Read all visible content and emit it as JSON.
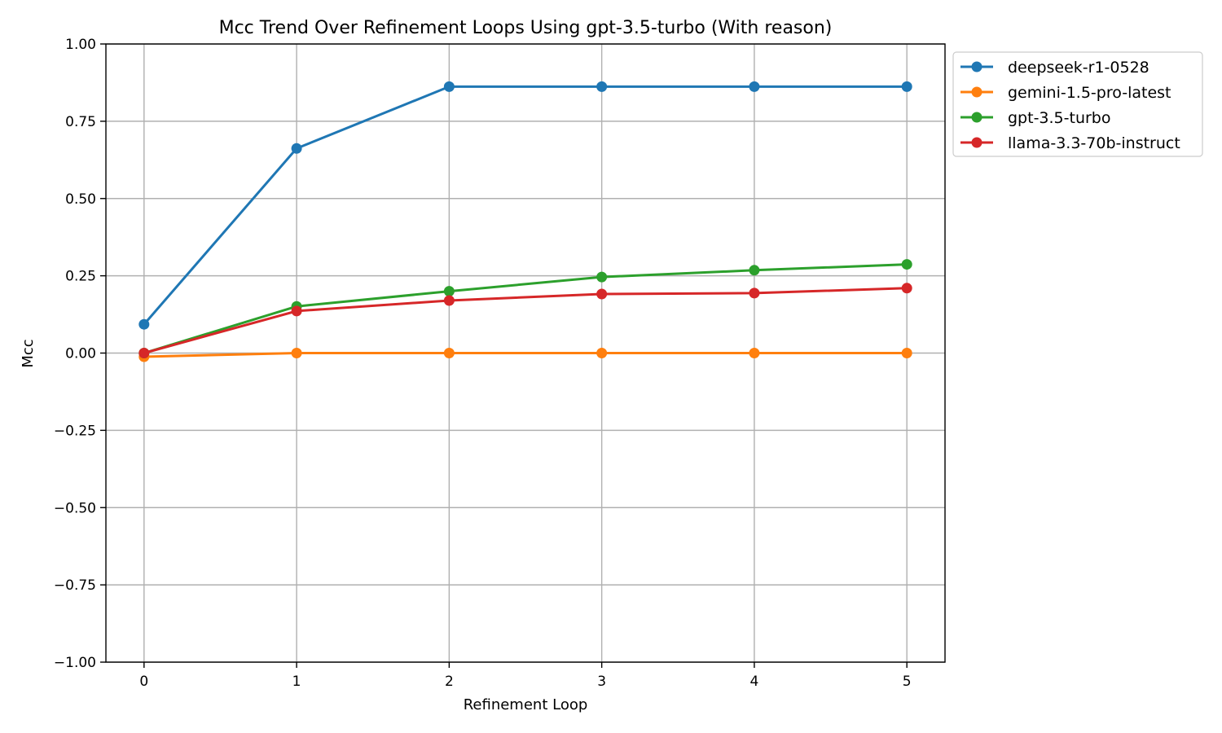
{
  "chart_data": {
    "type": "line",
    "title": "Mcc Trend Over Refinement Loops Using gpt-3.5-turbo (With reason)",
    "xlabel": "Refinement Loop",
    "ylabel": "Mcc",
    "x": [
      0,
      1,
      2,
      3,
      4,
      5
    ],
    "xticks": [
      "0",
      "1",
      "2",
      "3",
      "4",
      "5"
    ],
    "xlim": [
      -0.25,
      5.25
    ],
    "ylim": [
      -1.0,
      1.0
    ],
    "yticks": [
      1.0,
      0.75,
      0.5,
      0.25,
      0.0,
      -0.25,
      -0.5,
      -0.75,
      -1.0
    ],
    "ytick_labels": [
      "1.00",
      "0.75",
      "0.50",
      "0.25",
      "0.00",
      "−0.25",
      "−0.50",
      "−0.75",
      "−1.00"
    ],
    "grid": true,
    "legend_position": "outside-top-right",
    "series": [
      {
        "name": "deepseek-r1-0528",
        "color": "#1f77b4",
        "values": [
          0.093,
          0.662,
          0.862,
          0.862,
          0.862,
          0.862
        ]
      },
      {
        "name": "gemini-1.5-pro-latest",
        "color": "#ff7f0e",
        "values": [
          -0.012,
          0.0,
          0.0,
          0.0,
          0.0,
          0.0
        ]
      },
      {
        "name": "gpt-3.5-turbo",
        "color": "#2ca02c",
        "values": [
          0.0,
          0.151,
          0.2,
          0.246,
          0.268,
          0.287
        ]
      },
      {
        "name": "llama-3.3-70b-instruct",
        "color": "#d62728",
        "values": [
          0.0,
          0.136,
          0.17,
          0.191,
          0.194,
          0.21
        ]
      }
    ]
  }
}
